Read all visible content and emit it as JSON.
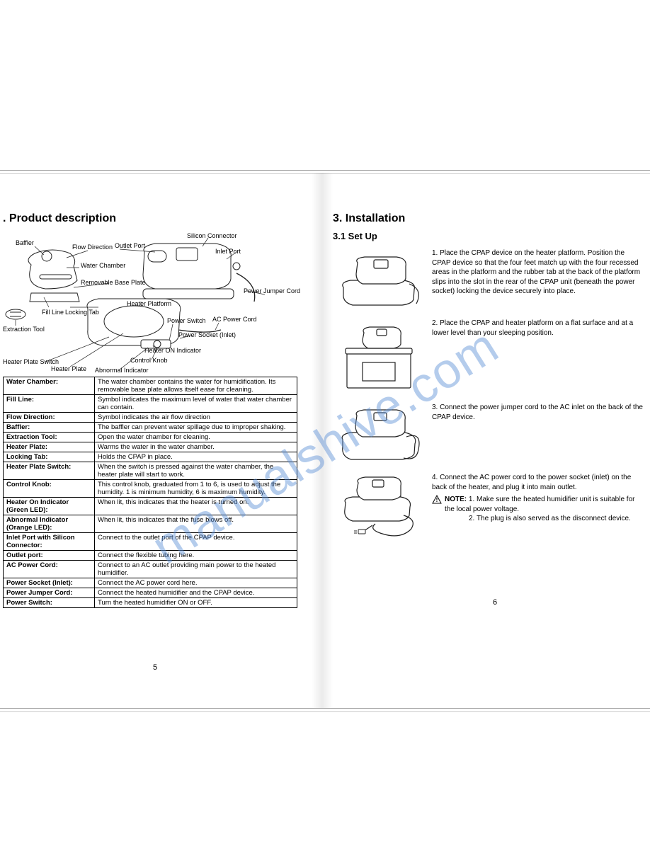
{
  "watermark": "manualshive.com",
  "left": {
    "heading": ". Product description",
    "page_number": "5",
    "diagram_labels": {
      "baffler": "Baffler",
      "flow_direction": "Flow Direction",
      "outlet_port": "Outlet Port",
      "silicon_connector": "Silicon Connector",
      "inlet_port": "Inlet Port",
      "water_chamber": "Water Chamber",
      "removable_base_plate": "Removable Base Plate",
      "power_jumper_cord": "Power Jumper Cord",
      "fill_line": "Fill Line",
      "locking_tab": "Locking Tab",
      "heater_platform": "Heater Platform",
      "extraction_tool": "Extraction Tool",
      "power_switch": "Power Switch",
      "ac_power_cord": "AC Power Cord",
      "power_socket": "Power Socket (Inlet)",
      "heater_on_indicator": "Heater ON Indicator",
      "heater_plate_switch": "Heater Plate Switch",
      "heater_plate": "Heater Plate",
      "control_knob": "Control Knob",
      "abnormal_indicator": "Abnormal Indicator"
    },
    "table": [
      {
        "k": "Water Chamber:",
        "v": "The water chamber contains the water for humidification. Its removable base plate allows itself ease for cleaning."
      },
      {
        "k": "Fill Line:",
        "v": "Symbol indicates the maximum level of water that water chamber can contain."
      },
      {
        "k": "Flow Direction:",
        "v": "Symbol indicates the air flow direction"
      },
      {
        "k": "Baffler:",
        "v": "The baffler can prevent water spillage due to improper shaking."
      },
      {
        "k": "Extraction Tool:",
        "v": "Open the water chamber for cleaning."
      },
      {
        "k": "Heater Plate:",
        "v": "Warms the water in the water chamber."
      },
      {
        "k": "Locking Tab:",
        "v": "Holds the CPAP in place."
      },
      {
        "k": "Heater Plate Switch:",
        "v": "When the switch is pressed against the water chamber, the heater plate will start to work."
      },
      {
        "k": "Control Knob:",
        "v": "This control knob, graduated from 1 to 6, is used to adjust the humidity. 1 is minimum humidity, 6 is maximum humidity."
      },
      {
        "k": "Heater On Indicator (Green LED):",
        "v": "When lit, this indicates that the heater is turned on."
      },
      {
        "k": "Abnormal Indicator (Orange LED):",
        "v": "When lit, this indicates that the fuse blows off."
      },
      {
        "k": "Inlet Port with Silicon Connector:",
        "v": "Connect to the outlet port of the CPAP device."
      },
      {
        "k": "Outlet port:",
        "v": "Connect the flexible tubing here."
      },
      {
        "k": "AC Power Cord:",
        "v": "Connect to an AC outlet providing main power to the heated humidifier."
      },
      {
        "k": "Power Socket (Inlet):",
        "v": "Connect the AC power cord here."
      },
      {
        "k": "Power Jumper Cord:",
        "v": "Connect the heated humidifier and the CPAP device."
      },
      {
        "k": "Power Switch:",
        "v": "Turn the heated humidifier ON or OFF."
      }
    ]
  },
  "right": {
    "heading": "3.  Installation",
    "subheading": "3.1   Set Up",
    "page_number": "6",
    "steps": [
      {
        "n": "1.",
        "text": "Place the CPAP device on the heater platform. Position the CPAP device so that the four feet match up with the four recessed areas in the platform and the rubber tab at the back of the platform slips into the slot in the rear of the CPAP unit (beneath the power socket) locking the device securely into place."
      },
      {
        "n": "2.",
        "text": "Place the CPAP and heater platform on a flat surface and at a lower level than your sleeping position."
      },
      {
        "n": "3.",
        "text": "Connect the power jumper cord to the AC inlet on the back of the CPAP device."
      },
      {
        "n": "4.",
        "text": "Connect the AC power cord to the power socket (inlet) on the back of the heater, and plug it into main outlet."
      }
    ],
    "note_label": "NOTE:",
    "note_items": [
      "1. Make sure the heated humidifier unit is suitable for the local power voltage.",
      "2. The plug is also served as the disconnect device."
    ]
  },
  "style": {
    "text_color": "#000000",
    "watermark_color": "#5b8fd6",
    "line_color": "#222222",
    "fill_light": "#ffffff",
    "label_fontsize": 9,
    "body_fontsize": 10,
    "heading_fontsize": 16
  }
}
